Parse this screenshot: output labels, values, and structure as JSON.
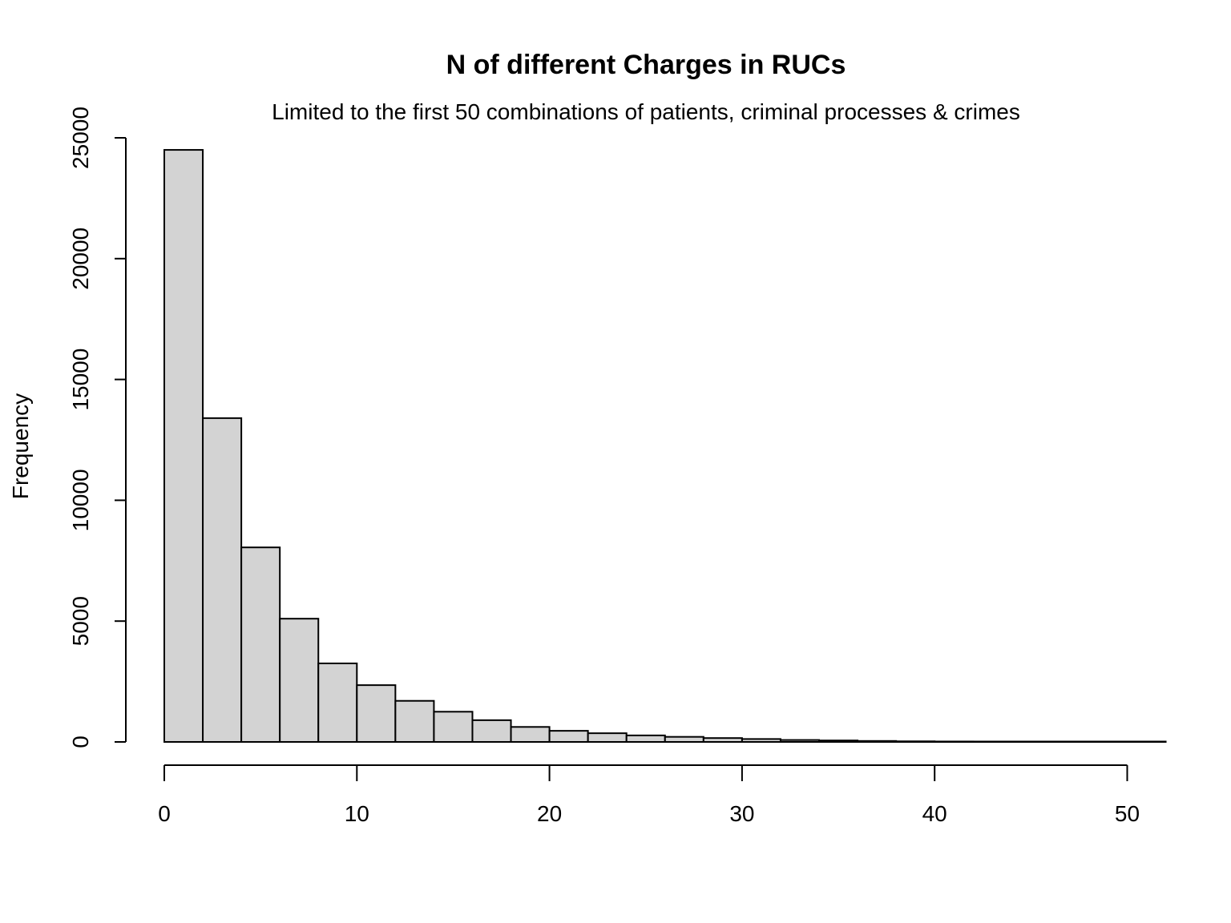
{
  "chart_data": {
    "type": "bar",
    "title": "N of different Charges in RUCs",
    "subtitle": "Limited to the first 50 combinations of patients, criminal processes & crimes",
    "xlabel": "",
    "ylabel": "Frequency",
    "xlim": [
      0,
      52
    ],
    "ylim": [
      0,
      25000
    ],
    "x_ticks": [
      0,
      10,
      20,
      30,
      40,
      50
    ],
    "y_ticks": [
      0,
      5000,
      10000,
      15000,
      20000,
      25000
    ],
    "bin_edges": [
      0,
      2,
      4,
      6,
      8,
      10,
      12,
      14,
      16,
      18,
      20,
      22,
      24,
      26,
      28,
      30,
      32,
      34,
      36,
      38,
      40,
      42,
      44,
      46,
      48,
      50,
      52
    ],
    "values": [
      24500,
      13400,
      8050,
      5100,
      3250,
      2350,
      1700,
      1250,
      900,
      620,
      460,
      360,
      270,
      210,
      160,
      120,
      80,
      60,
      40,
      25,
      18,
      12,
      8,
      5,
      2,
      1
    ],
    "grid": false,
    "legend": "none",
    "colors": {
      "bar_fill": "#d3d3d3",
      "bar_stroke": "#000000"
    }
  }
}
